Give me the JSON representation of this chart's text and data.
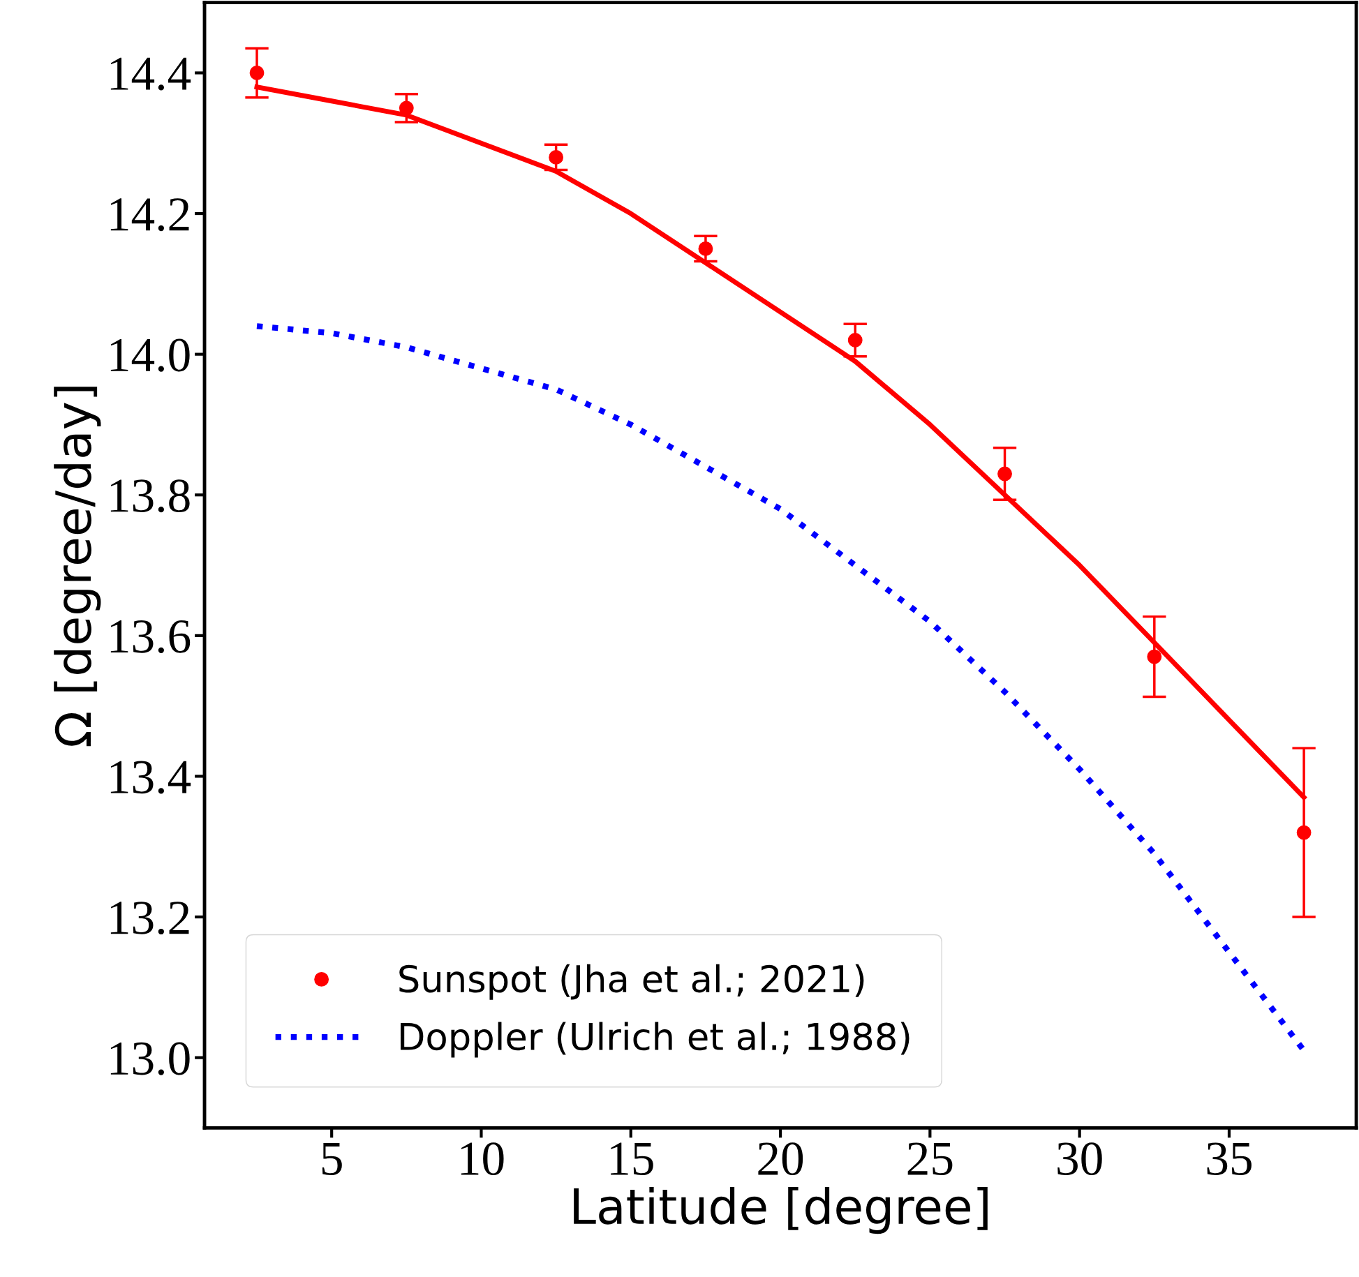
{
  "chart_data": {
    "type": "line",
    "xlabel": "Latitude [degree]",
    "ylabel": "Ω [degree/day]",
    "xlim": [
      0.75,
      39.25
    ],
    "ylim": [
      12.9,
      14.5
    ],
    "xticks": [
      5,
      10,
      15,
      20,
      25,
      30,
      35
    ],
    "yticks": [
      {
        "value": 13.0,
        "label": "13.0"
      },
      13.2,
      13.4,
      13.6,
      13.8,
      {
        "value": 14.0,
        "label": "14.0"
      },
      14.2,
      14.4
    ],
    "grid": false,
    "legend": "bottom left",
    "series": [
      {
        "name": "Sunspot (Jha et al.; 2021)",
        "type": "scatter",
        "marker": "circle",
        "color": "#ff0000",
        "x": [
          2.5,
          7.5,
          12.5,
          17.5,
          22.5,
          27.5,
          32.5,
          37.5
        ],
        "values": [
          14.4,
          14.35,
          14.28,
          14.15,
          14.02,
          13.83,
          13.57,
          13.32
        ],
        "errors": [
          0.035,
          0.02,
          0.018,
          0.018,
          0.023,
          0.037,
          0.057,
          0.12
        ]
      },
      {
        "line_style": "solid",
        "color": "#ff0000",
        "x": [
          2.5,
          5,
          7.5,
          10,
          12.5,
          15,
          17.5,
          20,
          22.5,
          25,
          27.5,
          30,
          32.5,
          35,
          37.5
        ],
        "values": [
          14.38,
          14.36,
          14.34,
          14.3,
          14.26,
          14.2,
          14.13,
          14.06,
          13.99,
          13.9,
          13.8,
          13.7,
          13.59,
          13.48,
          13.37
        ]
      },
      {
        "name": "Doppler (Ulrich et al.; 1988)",
        "type": "line",
        "line_style": "dotted",
        "color": "#0000ff",
        "x": [
          2.5,
          5,
          7.5,
          10,
          12.5,
          15,
          17.5,
          20,
          22.5,
          25,
          27.5,
          30,
          32.5,
          35,
          37.5
        ],
        "values": [
          14.04,
          14.03,
          14.01,
          13.98,
          13.95,
          13.9,
          13.84,
          13.78,
          13.7,
          13.62,
          13.52,
          13.41,
          13.29,
          13.15,
          13.01
        ]
      }
    ]
  }
}
